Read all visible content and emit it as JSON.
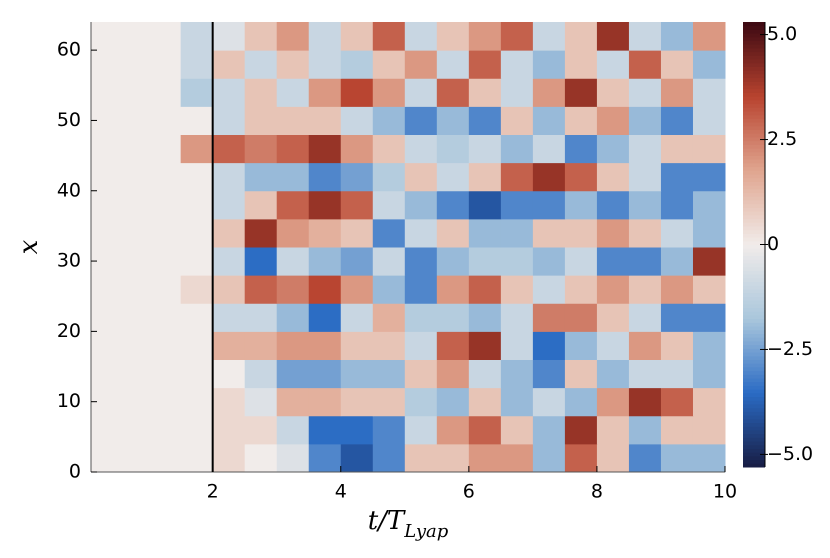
{
  "chart_data": {
    "type": "heatmap",
    "xlabel": [
      "t/T",
      "Lyap"
    ],
    "ylabel": "x",
    "xbins": [
      0.1,
      0.5,
      1,
      1.5,
      2,
      2.5,
      3,
      3.5,
      4,
      4.5,
      5,
      5.5,
      6,
      6.5,
      7,
      7.5,
      8,
      8.5,
      9,
      9.5,
      10
    ],
    "ybins": [
      0,
      4,
      8,
      12,
      16,
      20,
      24,
      28,
      32,
      36,
      40,
      44,
      48,
      52,
      56,
      60,
      64
    ],
    "z": [
      [
        0,
        0,
        0,
        0,
        0.5,
        0,
        -0.5,
        -3,
        -4,
        -3,
        1,
        1,
        2,
        2,
        -2,
        3,
        1,
        -3,
        -2,
        -2
      ],
      [
        0,
        0,
        0,
        0,
        0.5,
        0.5,
        -1,
        -3.5,
        -3.5,
        -3,
        -1,
        2,
        3,
        1,
        -2,
        4,
        1,
        -2,
        1,
        1
      ],
      [
        0,
        0,
        0,
        0,
        0.5,
        -0.5,
        1.5,
        1.5,
        1,
        1,
        -1.5,
        -2,
        1,
        -2,
        -1,
        -2,
        2,
        4,
        3,
        1
      ],
      [
        0,
        0,
        0,
        0,
        0,
        -1,
        -2.5,
        -2.5,
        -2,
        -2,
        1,
        2,
        -1,
        -2,
        -3,
        1,
        -2,
        -1,
        -1,
        -2
      ],
      [
        0,
        0,
        0,
        0,
        1.5,
        1.5,
        2,
        2,
        1,
        1,
        -1,
        3,
        4,
        -1,
        -3.5,
        -2,
        -1,
        2,
        1,
        -2
      ],
      [
        0,
        0,
        0,
        0,
        -1,
        -1,
        -2,
        -3.5,
        -1,
        1.5,
        -1.5,
        -1.5,
        -2,
        -1,
        2.5,
        2.5,
        1,
        -1,
        -3,
        -3
      ],
      [
        0,
        0,
        0,
        0.5,
        1,
        3,
        2.5,
        3.5,
        2,
        -2,
        -3,
        2,
        3,
        1,
        -1,
        1,
        2,
        1,
        2,
        1
      ],
      [
        0,
        0,
        0,
        0,
        -1,
        -3.5,
        -1,
        -2,
        -2.5,
        -1,
        -3,
        -2,
        -1.5,
        -1.5,
        -2,
        -1,
        -3,
        -3,
        -2,
        4
      ],
      [
        0,
        0,
        0,
        0,
        1,
        4,
        2,
        1.5,
        1,
        -3,
        -1,
        1,
        -2,
        -2,
        1,
        1,
        2,
        1,
        -1,
        -2
      ],
      [
        0,
        0,
        0,
        0,
        -1,
        1,
        3,
        4,
        3,
        -1,
        -2,
        -3,
        -4,
        -3,
        -3,
        -2,
        -3,
        -2,
        -3,
        -2
      ],
      [
        0,
        0,
        0,
        0,
        -1,
        -2,
        -2,
        -3,
        -2.5,
        -1.5,
        1,
        -1,
        1,
        3,
        4,
        3,
        1,
        -1,
        -3,
        -3
      ],
      [
        0,
        0,
        0,
        2,
        3,
        2.5,
        3,
        4,
        2,
        1,
        -1,
        -1.5,
        -1,
        -2,
        -1,
        -3,
        -2,
        -1,
        1,
        1
      ],
      [
        0,
        0,
        0,
        0,
        -1,
        1,
        1,
        1,
        -1,
        -2,
        -3,
        -2,
        -3,
        1,
        -2,
        1,
        2,
        -2,
        -3,
        -1
      ],
      [
        0,
        0,
        0,
        -1.5,
        -1,
        1,
        -1,
        2,
        3.5,
        2,
        -1,
        3,
        1,
        -1,
        2,
        4,
        1,
        -1,
        2,
        -1
      ],
      [
        0,
        0,
        0,
        -1,
        1,
        -1,
        1,
        -1,
        -1.5,
        1,
        2,
        -1,
        3,
        -1,
        -2,
        1,
        -1,
        3,
        1,
        -2
      ],
      [
        0,
        0,
        0,
        -1,
        -0.5,
        1,
        2,
        -1,
        1,
        3,
        -1,
        1,
        2,
        3,
        -1,
        1,
        4,
        -1,
        -2,
        2
      ]
    ],
    "xlim": [
      0.1,
      10
    ],
    "ylim": [
      0,
      64
    ],
    "clim": [
      -5.3,
      5.3
    ],
    "xticks": [
      2,
      4,
      6,
      8,
      10
    ],
    "yticks": [
      0,
      10,
      20,
      30,
      40,
      50,
      60
    ],
    "cticks": [
      {
        "value": -5,
        "label": "−5.0"
      },
      {
        "value": -2.5,
        "label": "−2.5"
      },
      0,
      2.5,
      {
        "value": 5,
        "label": "5.0"
      }
    ],
    "colormap": [
      "#181c43",
      "#2a6bc4",
      "#a9c6dc",
      "#f1ecea",
      "#e0a58f",
      "#b8432f",
      "#3c0912"
    ],
    "vline": 2
  }
}
